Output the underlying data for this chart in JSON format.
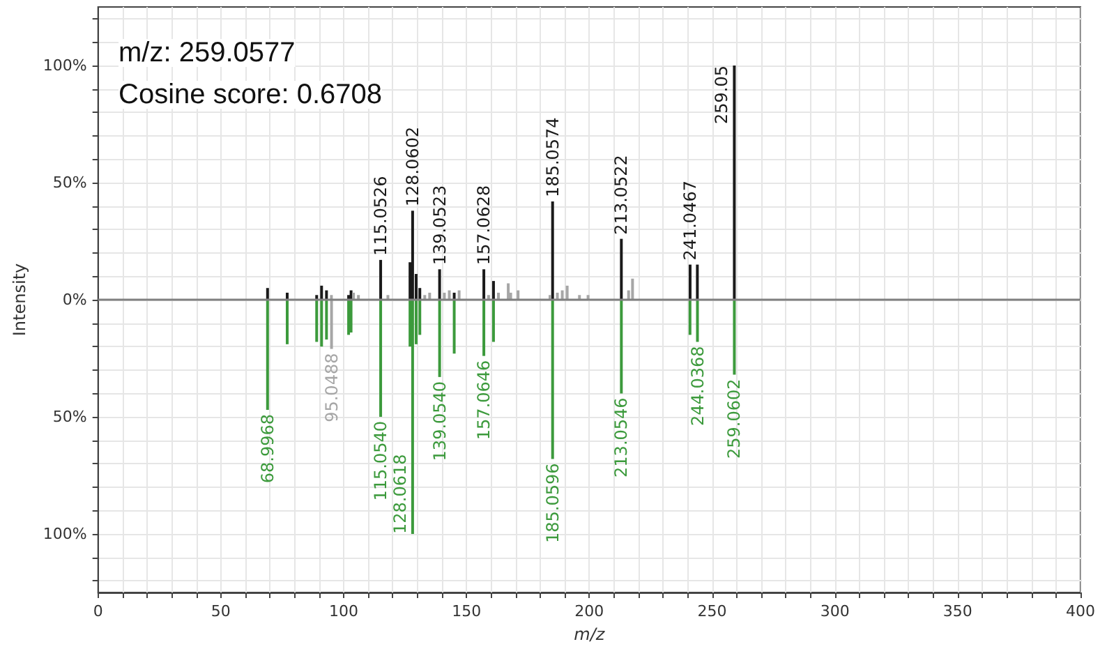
{
  "chart_data": {
    "type": "bar",
    "xlabel": "m/z",
    "ylabel": "Intensity",
    "annotations": [
      "m/z: 259.0577",
      "Cosine score: 0.6708",
      {
        "text": "115.0526",
        "x": 115.0526,
        "y": 17
      },
      {
        "text": "128.0602",
        "x": 128.0602,
        "y": 38
      },
      {
        "text": "139.0523",
        "x": 139.0523,
        "y": 13
      },
      {
        "text": "157.0628",
        "x": 157.0628,
        "y": 13
      },
      {
        "text": "185.0574",
        "x": 185.0574,
        "y": 42
      },
      {
        "text": "213.0522",
        "x": 213.0522,
        "y": 26
      },
      {
        "text": "241.0467",
        "x": 241.0467,
        "y": 15
      },
      {
        "text": "259.05",
        "x": 259.05,
        "y": 100
      },
      {
        "text": "68.9968",
        "x": 68.9968,
        "y": -47
      },
      {
        "text": "95.0488",
        "x": 95.0488,
        "y": -21
      },
      {
        "text": "115.0540",
        "x": 115.054,
        "y": -50
      },
      {
        "text": "128.0618",
        "x": 128.0618,
        "y": -100
      },
      {
        "text": "139.0540",
        "x": 139.054,
        "y": -33
      },
      {
        "text": "157.0646",
        "x": 157.0646,
        "y": -24
      },
      {
        "text": "185.0596",
        "x": 185.0596,
        "y": -68
      },
      {
        "text": "213.0546",
        "x": 213.0546,
        "y": -40
      },
      {
        "text": "244.0368",
        "x": 244.0368,
        "y": -18
      },
      {
        "text": "259.0602",
        "x": 259.0602,
        "y": -32
      }
    ],
    "series": [
      {
        "color": "#1a1a1a",
        "x": [
          69,
          77,
          89,
          91,
          93,
          102,
          103,
          115.0526,
          127,
          128.0602,
          129.5,
          131,
          139.0523,
          145,
          157.0628,
          161,
          185.0574,
          213.0522,
          241.0467,
          244,
          259.05
        ],
        "values": [
          5,
          3,
          2,
          6,
          4,
          2,
          4,
          17,
          16,
          38,
          11,
          5,
          13,
          3,
          13,
          8,
          42,
          26,
          15,
          15,
          100
        ]
      },
      {
        "color": "#a6a6a6",
        "x": [
          95,
          104,
          106,
          118,
          133,
          135,
          141,
          143,
          147,
          159,
          163,
          167,
          168,
          171,
          184,
          187,
          189,
          191,
          196,
          199.5,
          216,
          217.6
        ],
        "values": [
          2,
          3,
          2,
          2,
          2,
          3,
          3,
          4,
          4,
          2,
          3,
          7,
          3,
          4,
          2,
          3,
          4,
          6,
          2,
          2,
          4,
          9
        ]
      },
      {
        "color": "#3c9a3c",
        "x": [
          68.9968,
          77,
          89,
          91,
          93,
          102,
          103,
          115.054,
          127,
          128.0618,
          129.5,
          131,
          139.054,
          145,
          157.0646,
          161,
          185.0596,
          213.0546,
          241,
          244.0368,
          259.0602
        ],
        "values": [
          -47,
          -19,
          -18,
          -20,
          -17,
          -15,
          -14,
          -50,
          -20,
          -100,
          -19,
          -15,
          -33,
          -23,
          -24,
          -18,
          -68,
          -40,
          -15,
          -18,
          -32
        ]
      },
      {
        "color": "#a6a6a6",
        "x": [
          95.0488
        ],
        "values": [
          -21
        ]
      }
    ],
    "xlim": [
      0,
      400
    ],
    "xticks": [
      0,
      {
        "value": 10,
        "label": null
      },
      {
        "value": 20,
        "label": null
      },
      {
        "value": 30,
        "label": null
      },
      {
        "value": 40,
        "label": null
      },
      50,
      {
        "value": 60,
        "label": null
      },
      {
        "value": 70,
        "label": null
      },
      {
        "value": 80,
        "label": null
      },
      {
        "value": 90,
        "label": null
      },
      100,
      {
        "value": 110,
        "label": null
      },
      {
        "value": 120,
        "label": null
      },
      {
        "value": 130,
        "label": null
      },
      {
        "value": 140,
        "label": null
      },
      150,
      {
        "value": 160,
        "label": null
      },
      {
        "value": 170,
        "label": null
      },
      {
        "value": 180,
        "label": null
      },
      {
        "value": 190,
        "label": null
      },
      200,
      {
        "value": 210,
        "label": null
      },
      {
        "value": 220,
        "label": null
      },
      {
        "value": 230,
        "label": null
      },
      {
        "value": 240,
        "label": null
      },
      250,
      {
        "value": 260,
        "label": null
      },
      {
        "value": 270,
        "label": null
      },
      {
        "value": 280,
        "label": null
      },
      {
        "value": 290,
        "label": null
      },
      300,
      {
        "value": 310,
        "label": null
      },
      {
        "value": 320,
        "label": null
      },
      {
        "value": 330,
        "label": null
      },
      {
        "value": 340,
        "label": null
      },
      350,
      {
        "value": 360,
        "label": null
      },
      {
        "value": 370,
        "label": null
      },
      {
        "value": 380,
        "label": null
      },
      {
        "value": 390,
        "label": null
      },
      400
    ],
    "ylim": [
      -125,
      125
    ],
    "yticks": [
      {
        "value": -120,
        "label": null
      },
      {
        "value": -110,
        "label": null
      },
      {
        "value": -100,
        "label": "100%"
      },
      {
        "value": -90,
        "label": null
      },
      {
        "value": -80,
        "label": null
      },
      {
        "value": -70,
        "label": null
      },
      {
        "value": -60,
        "label": null
      },
      {
        "value": -50,
        "label": "50%"
      },
      {
        "value": -40,
        "label": null
      },
      {
        "value": -30,
        "label": null
      },
      {
        "value": -20,
        "label": null
      },
      {
        "value": -10,
        "label": null
      },
      {
        "value": 0,
        "label": "0%"
      },
      {
        "value": 10,
        "label": null
      },
      {
        "value": 20,
        "label": null
      },
      {
        "value": 30,
        "label": null
      },
      {
        "value": 40,
        "label": null
      },
      {
        "value": 50,
        "label": "50%"
      },
      {
        "value": 60,
        "label": null
      },
      {
        "value": 70,
        "label": null
      },
      {
        "value": 80,
        "label": null
      },
      {
        "value": 90,
        "label": null
      },
      {
        "value": 100,
        "label": "100%"
      },
      {
        "value": 110,
        "label": null
      },
      {
        "value": 120,
        "label": null
      }
    ],
    "ref_lines": [
      {
        "axis": "y",
        "value": 0,
        "color": "#808080"
      }
    ],
    "grid": true
  }
}
